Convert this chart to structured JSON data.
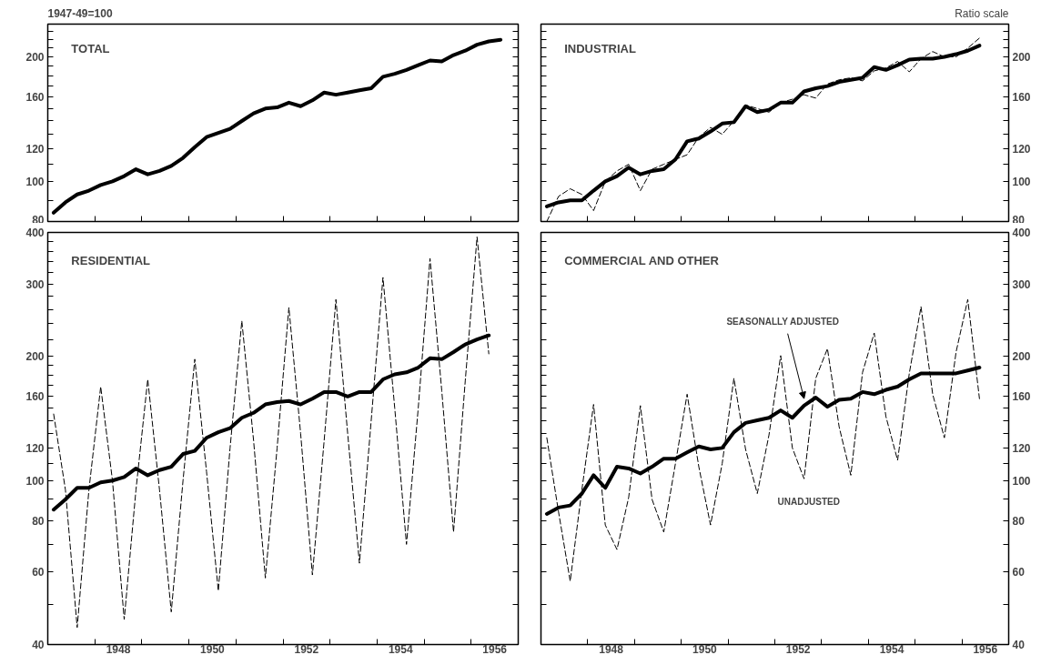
{
  "chart_data": [
    {
      "type": "line",
      "title": "TOTAL",
      "annotations": [
        "1947-49=100"
      ],
      "log": "y",
      "tick_labels": "y",
      "xlim": [
        1947,
        1957
      ],
      "ylim": [
        80,
        240
      ],
      "xticks": [
        {
          "value": 1948,
          "label": null
        },
        {
          "value": 1949,
          "label": null
        },
        {
          "value": 1950,
          "label": null
        },
        {
          "value": 1951,
          "label": null
        },
        {
          "value": 1952,
          "label": null
        },
        {
          "value": 1953,
          "label": null
        },
        {
          "value": 1954,
          "label": null
        },
        {
          "value": 1955,
          "label": null
        },
        {
          "value": 1956,
          "label": null
        }
      ],
      "yticks": [
        80,
        100,
        120,
        160,
        200,
        {
          "value": 90,
          "label": null
        },
        {
          "value": 110,
          "label": null
        },
        {
          "value": 130,
          "label": null
        },
        {
          "value": 140,
          "label": null
        },
        {
          "value": 150,
          "label": null
        },
        {
          "value": 170,
          "label": null
        },
        {
          "value": 180,
          "label": null
        },
        {
          "value": 190,
          "label": null
        },
        {
          "value": 210,
          "label": null
        },
        {
          "value": 220,
          "label": null
        },
        {
          "value": 230,
          "label": null
        }
      ],
      "x": [
        1947.125,
        1947.375,
        1947.625,
        1947.875,
        1948.125,
        1948.375,
        1948.625,
        1948.875,
        1949.125,
        1949.375,
        1949.625,
        1949.875,
        1950.125,
        1950.375,
        1950.625,
        1950.875,
        1951.125,
        1951.375,
        1951.625,
        1951.875,
        1952.125,
        1952.375,
        1952.625,
        1952.875,
        1953.125,
        1953.375,
        1953.625,
        1953.875,
        1954.125,
        1954.375,
        1954.625,
        1954.875,
        1955.125,
        1955.375,
        1955.625,
        1955.875,
        1956.125,
        1956.375,
        1956.625
      ],
      "series": [
        {
          "color": "#000000",
          "line_style": "solid",
          "values": [
            84,
            89,
            93,
            95,
            98,
            100,
            103,
            107,
            104,
            106,
            109,
            114,
            121,
            128,
            131,
            134,
            140,
            146,
            150,
            151,
            155,
            152,
            157,
            164,
            162,
            164,
            166,
            168,
            179,
            182,
            186,
            191,
            196,
            195,
            202,
            207,
            214,
            218,
            220
          ]
        }
      ]
    },
    {
      "type": "line",
      "title": "INDUSTRIAL",
      "annotations": [
        "Ratio scale"
      ],
      "log": "y",
      "tick_labels": "y",
      "xlim": [
        1947,
        1957
      ],
      "ylim": [
        80,
        240
      ],
      "xticks": [
        {
          "value": 1948,
          "label": null
        },
        {
          "value": 1949,
          "label": null
        },
        {
          "value": 1950,
          "label": null
        },
        {
          "value": 1951,
          "label": null
        },
        {
          "value": 1952,
          "label": null
        },
        {
          "value": 1953,
          "label": null
        },
        {
          "value": 1954,
          "label": null
        },
        {
          "value": 1955,
          "label": null
        },
        {
          "value": 1956,
          "label": null
        }
      ],
      "yticks": [
        80,
        100,
        120,
        160,
        200,
        {
          "value": 90,
          "label": null
        },
        {
          "value": 110,
          "label": null
        },
        {
          "value": 130,
          "label": null
        },
        {
          "value": 140,
          "label": null
        },
        {
          "value": 150,
          "label": null
        },
        {
          "value": 170,
          "label": null
        },
        {
          "value": 180,
          "label": null
        },
        {
          "value": 190,
          "label": null
        },
        {
          "value": 210,
          "label": null
        },
        {
          "value": 220,
          "label": null
        },
        {
          "value": 230,
          "label": null
        }
      ],
      "x": [
        1947.125,
        1947.375,
        1947.625,
        1947.875,
        1948.125,
        1948.375,
        1948.625,
        1948.875,
        1949.125,
        1949.375,
        1949.625,
        1949.875,
        1950.125,
        1950.375,
        1950.625,
        1950.875,
        1951.125,
        1951.375,
        1951.625,
        1951.875,
        1952.125,
        1952.375,
        1952.625,
        1952.875,
        1953.125,
        1953.375,
        1953.625,
        1953.875,
        1954.125,
        1954.375,
        1954.625,
        1954.875,
        1955.125,
        1955.375,
        1955.625,
        1955.875,
        1956.125,
        1956.375
      ],
      "series": [
        {
          "color": "#000000",
          "line_style": "dashed",
          "values": [
            80,
            92,
            96,
            93,
            85,
            100,
            106,
            110,
            95,
            107,
            110,
            113,
            116,
            128,
            135,
            130,
            140,
            153,
            150,
            147,
            155,
            158,
            162,
            159,
            172,
            176,
            178,
            175,
            185,
            188,
            195,
            184,
            198,
            206,
            200,
            200,
            210,
            222
          ]
        },
        {
          "color": "#000000",
          "line_style": "solid",
          "values": [
            87,
            89,
            90,
            90,
            95,
            100,
            103,
            108,
            104,
            106,
            107,
            113,
            125,
            127,
            132,
            138,
            139,
            152,
            147,
            149,
            155,
            155,
            165,
            168,
            170,
            174,
            176,
            178,
            189,
            186,
            191,
            197,
            198,
            198,
            200,
            203,
            207,
            213
          ]
        }
      ]
    },
    {
      "type": "line",
      "title": "RESIDENTIAL",
      "log": "y",
      "xlim": [
        1947,
        1957
      ],
      "ylim": [
        40,
        400
      ],
      "xticks": [
        {
          "value": 1948,
          "label": null
        },
        {
          "value": 1949,
          "label": null
        },
        {
          "value": 1950,
          "label": null
        },
        {
          "value": 1951,
          "label": null
        },
        {
          "value": 1952,
          "label": null
        },
        {
          "value": 1953,
          "label": null
        },
        {
          "value": 1954,
          "label": null
        },
        {
          "value": 1955,
          "label": null
        },
        {
          "value": 1956,
          "label": null
        },
        {
          "value": 1948.5,
          "label": "1948"
        },
        {
          "value": 1950.5,
          "label": "1950"
        },
        {
          "value": 1952.5,
          "label": "1952"
        },
        {
          "value": 1954.5,
          "label": "1954"
        },
        {
          "value": 1956.5,
          "label": "1956"
        }
      ],
      "yticks": [
        40,
        60,
        80,
        100,
        120,
        160,
        200,
        300,
        400,
        {
          "value": 50,
          "label": null
        },
        {
          "value": 70,
          "label": null
        },
        {
          "value": 90,
          "label": null
        },
        {
          "value": 110,
          "label": null
        },
        {
          "value": 130,
          "label": null
        },
        {
          "value": 140,
          "label": null
        },
        {
          "value": 150,
          "label": null
        },
        {
          "value": 170,
          "label": null
        },
        {
          "value": 180,
          "label": null
        },
        {
          "value": 190,
          "label": null
        },
        {
          "value": 220,
          "label": null
        },
        {
          "value": 240,
          "label": null
        },
        {
          "value": 260,
          "label": null
        },
        {
          "value": 280,
          "label": null
        },
        {
          "value": 320,
          "label": null
        },
        {
          "value": 340,
          "label": null
        },
        {
          "value": 360,
          "label": null
        },
        {
          "value": 380,
          "label": null
        }
      ],
      "x": [
        1947.125,
        1947.375,
        1947.625,
        1947.875,
        1948.125,
        1948.375,
        1948.625,
        1948.875,
        1949.125,
        1949.375,
        1949.625,
        1949.875,
        1950.125,
        1950.375,
        1950.625,
        1950.875,
        1951.125,
        1951.375,
        1951.625,
        1951.875,
        1952.125,
        1952.375,
        1952.625,
        1952.875,
        1953.125,
        1953.375,
        1953.625,
        1953.875,
        1954.125,
        1954.375,
        1954.625,
        1954.875,
        1955.125,
        1955.375,
        1955.625,
        1955.875,
        1956.125,
        1956.375
      ],
      "series": [
        {
          "color": "#000000",
          "line_style": "dashed",
          "values": [
            145,
            95,
            44,
            95,
            169,
            100,
            46,
            95,
            176,
            95,
            48,
            100,
            197,
            105,
            54,
            120,
            244,
            125,
            58,
            120,
            263,
            130,
            59,
            125,
            275,
            130,
            63,
            140,
            311,
            150,
            70,
            150,
            346,
            165,
            75,
            175,
            390,
            203
          ]
        },
        {
          "color": "#000000",
          "line_style": "solid",
          "values": [
            85,
            90,
            96,
            96,
            99,
            100,
            102,
            107,
            103,
            106,
            108,
            116,
            118,
            127,
            131,
            134,
            142,
            146,
            153,
            155,
            156,
            153,
            158,
            164,
            164,
            160,
            164,
            164,
            176,
            181,
            183,
            188,
            198,
            197,
            205,
            214,
            220,
            225
          ]
        }
      ]
    },
    {
      "type": "line",
      "title": "COMMERCIAL AND OTHER",
      "log": "y",
      "xlim": [
        1947,
        1957
      ],
      "ylim": [
        40,
        400
      ],
      "xticks": [
        {
          "value": 1948,
          "label": null
        },
        {
          "value": 1949,
          "label": null
        },
        {
          "value": 1950,
          "label": null
        },
        {
          "value": 1951,
          "label": null
        },
        {
          "value": 1952,
          "label": null
        },
        {
          "value": 1953,
          "label": null
        },
        {
          "value": 1954,
          "label": null
        },
        {
          "value": 1955,
          "label": null
        },
        {
          "value": 1956,
          "label": null
        },
        {
          "value": 1948.5,
          "label": "1948"
        },
        {
          "value": 1950.5,
          "label": "1950"
        },
        {
          "value": 1952.5,
          "label": "1952"
        },
        {
          "value": 1954.5,
          "label": "1954"
        },
        {
          "value": 1956.5,
          "label": "1956"
        }
      ],
      "yticks": [
        40,
        60,
        80,
        100,
        120,
        160,
        200,
        300,
        400,
        {
          "value": 50,
          "label": null
        },
        {
          "value": 70,
          "label": null
        },
        {
          "value": 90,
          "label": null
        },
        {
          "value": 110,
          "label": null
        },
        {
          "value": 130,
          "label": null
        },
        {
          "value": 140,
          "label": null
        },
        {
          "value": 150,
          "label": null
        },
        {
          "value": 170,
          "label": null
        },
        {
          "value": 180,
          "label": null
        },
        {
          "value": 190,
          "label": null
        },
        {
          "value": 220,
          "label": null
        },
        {
          "value": 240,
          "label": null
        },
        {
          "value": 260,
          "label": null
        },
        {
          "value": 280,
          "label": null
        },
        {
          "value": 320,
          "label": null
        },
        {
          "value": 340,
          "label": null
        },
        {
          "value": 360,
          "label": null
        },
        {
          "value": 380,
          "label": null
        }
      ],
      "x": [
        1947.125,
        1947.375,
        1947.625,
        1947.875,
        1948.125,
        1948.375,
        1948.625,
        1948.875,
        1949.125,
        1949.375,
        1949.625,
        1949.875,
        1950.125,
        1950.375,
        1950.625,
        1950.875,
        1951.125,
        1951.375,
        1951.625,
        1951.875,
        1952.125,
        1952.375,
        1952.625,
        1952.875,
        1953.125,
        1953.375,
        1953.625,
        1953.875,
        1954.125,
        1954.375,
        1954.625,
        1954.875,
        1955.125,
        1955.375,
        1955.625,
        1955.875,
        1956.125,
        1956.375
      ],
      "series": [
        {
          "name": "UNADJUSTED",
          "color": "#000000",
          "line_style": "dashed",
          "values": [
            127,
            84,
            57,
            95,
            153,
            78,
            68,
            91,
            152,
            90,
            75,
            110,
            162,
            108,
            78,
            110,
            177,
            119,
            93,
            129,
            201,
            120,
            101,
            177,
            209,
            135,
            103,
            183,
            228,
            143,
            112,
            182,
            264,
            162,
            127,
            205,
            275,
            158
          ]
        },
        {
          "name": "SEASONALLY ADJUSTED",
          "color": "#000000",
          "line_style": "solid",
          "values": [
            83,
            86,
            87,
            93,
            103,
            96,
            108,
            107,
            104,
            108,
            113,
            113,
            117,
            121,
            119,
            120,
            131,
            138,
            140,
            142,
            148,
            142,
            152,
            159,
            151,
            157,
            158,
            164,
            162,
            166,
            169,
            176,
            182,
            182,
            182,
            182,
            185,
            188
          ]
        }
      ]
    }
  ]
}
